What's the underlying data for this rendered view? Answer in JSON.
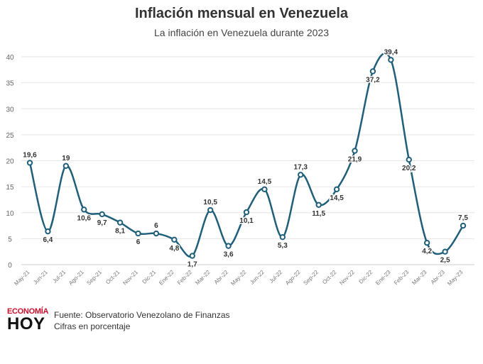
{
  "chart_data": {
    "type": "line",
    "title": "Inflación mensual en Venezuela",
    "subtitle": "La inflación en Venezuela durante 2023",
    "categories": [
      "May-21",
      "Jun-21",
      "Jul-21",
      "Ago-21",
      "Sep-21",
      "Oct-21",
      "Nov-21",
      "Dic-21",
      "Ene-22",
      "Feb-22",
      "Mar-22",
      "Abr-22",
      "May-22",
      "Jun-22",
      "Jul-22",
      "Ago-22",
      "Sep-22",
      "Oct-22",
      "Nov-22",
      "Dic-22",
      "Ene-23",
      "Feb-23",
      "Mar-23",
      "Abr-23",
      "May-23"
    ],
    "values": [
      19.6,
      6.4,
      19,
      10.6,
      9.7,
      8.1,
      6,
      6,
      4.8,
      1.7,
      10.5,
      3.6,
      10.1,
      14.5,
      5.3,
      17.3,
      11.5,
      14.5,
      21.9,
      37.2,
      39.4,
      20.2,
      4.2,
      2.5,
      7.5
    ],
    "data_labels": [
      "19,6",
      "6,4",
      "19",
      "10,6",
      "9,7",
      "8,1",
      "6",
      "6",
      "4,8",
      "1,7",
      "10,5",
      "3,6",
      "10,1",
      "14,5",
      "5,3",
      "17,3",
      "11,5",
      "14,5",
      "21,9",
      "37,2",
      "39,4",
      "20,2",
      "4,2",
      "2,5",
      "7,5"
    ],
    "y_ticks": [
      "0",
      "5",
      "10",
      "15",
      "20",
      "25",
      "30",
      "35",
      "40"
    ],
    "ylim": [
      0,
      40
    ],
    "grid": true,
    "line_color": "#1f5f7a"
  },
  "footer": {
    "logo_top": "ECONOMÍA",
    "logo_bottom": "HOY",
    "source": "Fuente: Observatorio Venezolano de Finanzas",
    "note": "Cifras en porcentaje"
  }
}
